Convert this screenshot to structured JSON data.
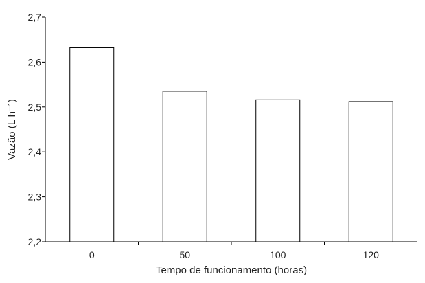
{
  "chart_data": {
    "type": "bar",
    "categories": [
      "0",
      "50",
      "100",
      "120"
    ],
    "values": [
      2.632,
      2.535,
      2.516,
      2.512
    ],
    "title": "",
    "xlabel": "Tempo de funcionamento (horas)",
    "ylabel": "Vazão (L h⁻¹)",
    "ylim": [
      2.2,
      2.7
    ],
    "yticks": [
      "2,2",
      "2,3",
      "2,4",
      "2,5",
      "2,6",
      "2,7"
    ],
    "grid": false,
    "legend": "none",
    "colors": {
      "bar_fill": "#ffffff",
      "bar_stroke": "#000000",
      "axis": "#000000",
      "text": "#222222"
    }
  }
}
